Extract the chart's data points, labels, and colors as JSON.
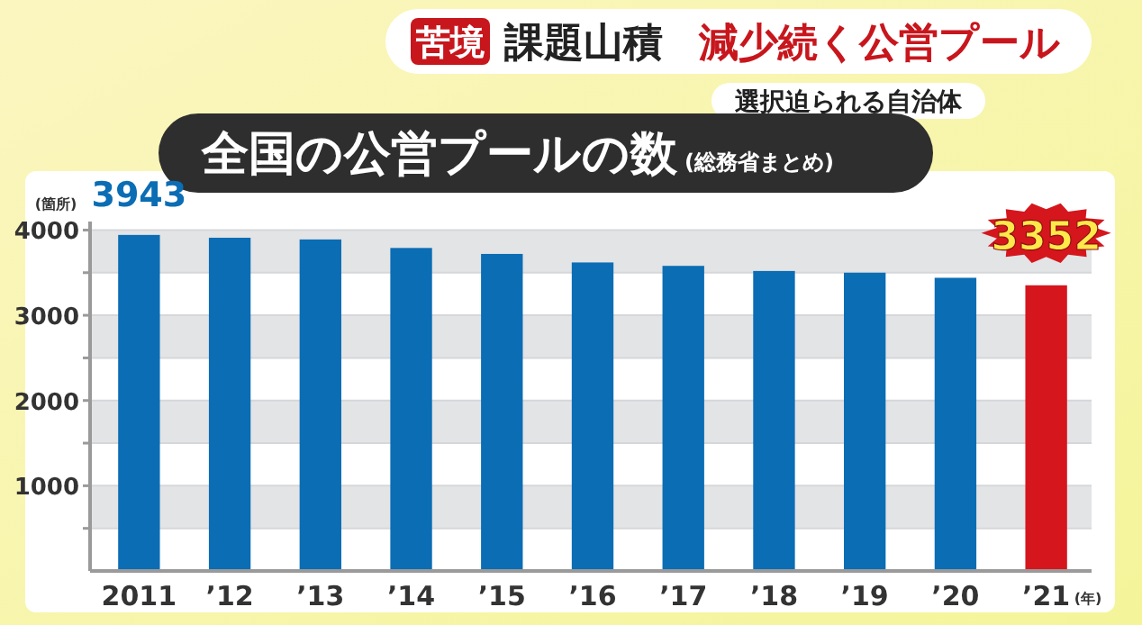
{
  "chart_data": {
    "type": "bar",
    "title": "全国の公営プールの数",
    "subtitle": "(総務省まとめ)",
    "ylabel": "(箇所)",
    "xlabel": "(年)",
    "annotations": [
      "苦境",
      "課題山積",
      "減少続く公営プール",
      "選択迫られる自治体"
    ],
    "categories": [
      "2011",
      "’12",
      "’13",
      "’14",
      "’15",
      "’16",
      "’17",
      "’18",
      "’19",
      "’20",
      "’21"
    ],
    "values": [
      3943,
      3910,
      3890,
      3790,
      3720,
      3620,
      3580,
      3520,
      3500,
      3440,
      3352
    ],
    "colors": [
      "#0b6db4",
      "#0b6db4",
      "#0b6db4",
      "#0b6db4",
      "#0b6db4",
      "#0b6db4",
      "#0b6db4",
      "#0b6db4",
      "#0b6db4",
      "#0b6db4",
      "#d5161d"
    ],
    "value_labels": [
      "3943",
      null,
      null,
      null,
      null,
      null,
      null,
      null,
      null,
      null,
      "3352"
    ],
    "ylim": [
      0,
      4100
    ],
    "yticks": [
      {
        "value": 500,
        "label": null
      },
      1000,
      {
        "value": 1500,
        "label": null
      },
      2000,
      {
        "value": 2500,
        "label": null
      },
      3000,
      {
        "value": 3500,
        "label": null
      },
      4000
    ],
    "grid": true
  }
}
